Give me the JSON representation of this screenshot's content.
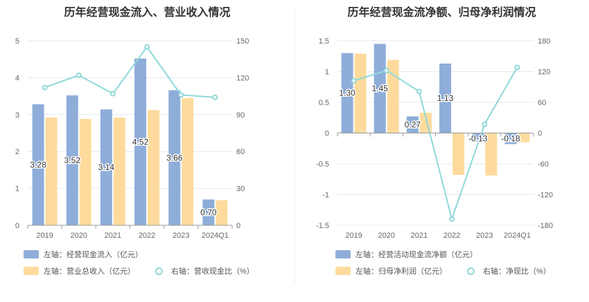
{
  "colors": {
    "bar1": "#8eadd9",
    "bar2": "#fedb9d",
    "line": "#8ed8d8",
    "grid": "#e4e8f0",
    "axis": "#999999"
  },
  "chart_data": [
    {
      "type": "bar",
      "title": "历年经营现金流入、营业收入情况",
      "categories": [
        "2019",
        "2020",
        "2021",
        "2022",
        "2023",
        "2024Q1"
      ],
      "left_ticks": [
        "0",
        "1",
        "2",
        "3",
        "4",
        "5"
      ],
      "right_ticks": [
        "0",
        "30",
        "60",
        "90",
        "120",
        "150"
      ],
      "ylim_left": [
        0,
        5
      ],
      "ylim_right": [
        0,
        150
      ],
      "series": [
        {
          "name": "左轴：经营现金流入（亿元）",
          "axis": "left",
          "values": [
            3.28,
            3.52,
            3.14,
            4.52,
            3.66,
            0.7
          ],
          "labels": [
            "3.28",
            "3.52",
            "3.14",
            "4.52",
            "3.66",
            "0.70"
          ]
        },
        {
          "name": "左轴：营业总收入（亿元）",
          "axis": "left",
          "values": [
            2.92,
            2.88,
            2.92,
            3.12,
            3.45,
            0.68
          ]
        },
        {
          "name": "右轴：营收现金比（%）",
          "axis": "right",
          "type": "line",
          "values": [
            112,
            122,
            107,
            145,
            106,
            104
          ]
        }
      ]
    },
    {
      "type": "bar",
      "title": "历年经营现金流净额、归母净利润情况",
      "categories": [
        "2019",
        "2020",
        "2021",
        "2022",
        "2023",
        "2024Q1"
      ],
      "left_ticks": [
        "-1.5",
        "-1",
        "-0.5",
        "0",
        "0.5",
        "1",
        "1.5"
      ],
      "right_ticks": [
        "-180",
        "-120",
        "-60",
        "0",
        "60",
        "120",
        "180"
      ],
      "ylim_left": [
        -1.5,
        1.5
      ],
      "ylim_right": [
        -180,
        180
      ],
      "series": [
        {
          "name": "左轴：经营活动现金流净额（亿元）",
          "axis": "left",
          "values": [
            1.3,
            1.45,
            0.27,
            1.13,
            -0.13,
            -0.18
          ],
          "labels": [
            "1.30",
            "1.45",
            "0.27",
            "1.13",
            "-0.13",
            "-0.18"
          ]
        },
        {
          "name": "左轴：归母净利润（亿元）",
          "axis": "left",
          "values": [
            1.29,
            1.19,
            0.33,
            -0.68,
            -0.69,
            -0.15
          ]
        },
        {
          "name": "右轴：净现比（%）",
          "axis": "right",
          "type": "line",
          "values": [
            102,
            122,
            81,
            -168,
            17,
            128
          ]
        }
      ]
    }
  ]
}
